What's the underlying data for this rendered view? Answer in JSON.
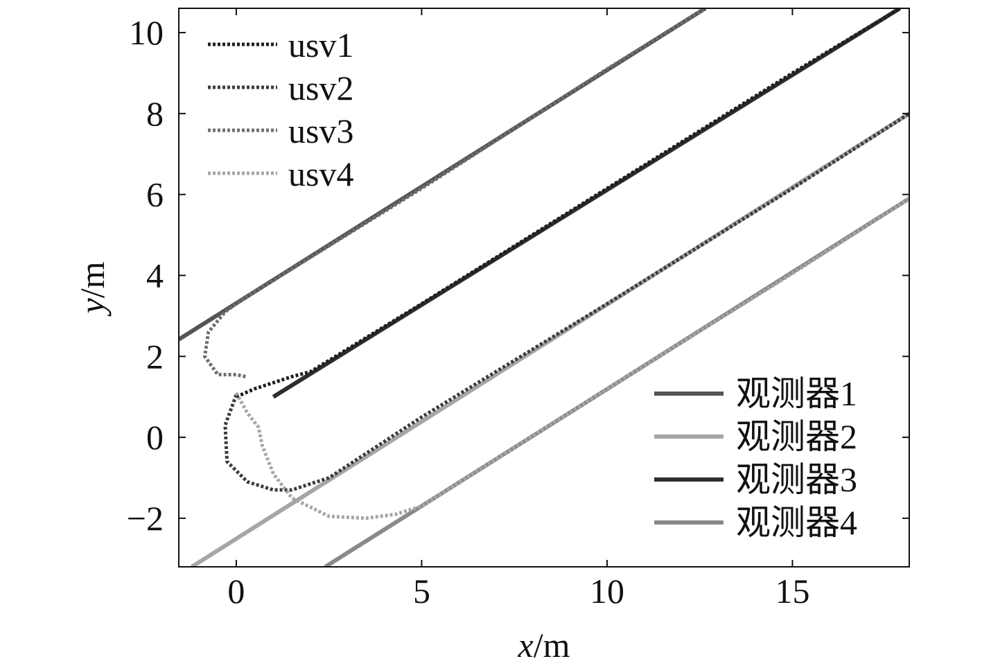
{
  "chart_data": {
    "type": "line",
    "title": "",
    "xlabel_var": "x",
    "xlabel_unit": "/m",
    "ylabel_var": "y",
    "ylabel_unit": "/m",
    "xlim": [
      -1.55,
      18.15
    ],
    "ylim": [
      -3.2,
      10.6
    ],
    "xticks": [
      0,
      5,
      10,
      15
    ],
    "xtick_labels": [
      "0",
      "5",
      "10",
      "15"
    ],
    "yticks": [
      -2,
      0,
      2,
      4,
      6,
      8,
      10
    ],
    "ytick_labels": [
      "−2",
      "0",
      "2",
      "4",
      "6",
      "8",
      "10"
    ],
    "grid": false,
    "legend_dotted_placement": "top-left",
    "legend_solid_placement": "bottom-right",
    "series": [
      {
        "name": "观测器1",
        "style": "solid",
        "color": "#555555",
        "x": [
          -1.55,
          12.65
        ],
        "y": [
          2.42,
          10.6
        ]
      },
      {
        "name": "观测器2",
        "style": "solid",
        "color": "#a6a6a6",
        "x": [
          -1.2,
          18.15
        ],
        "y": [
          -3.2,
          8.0
        ]
      },
      {
        "name": "观测器3",
        "style": "solid",
        "color": "#2e2e2e",
        "x": [
          1.0,
          17.9
        ],
        "y": [
          1.0,
          10.6
        ]
      },
      {
        "name": "观测器4",
        "style": "solid",
        "color": "#8a8a8a",
        "x": [
          2.4,
          18.15
        ],
        "y": [
          -3.2,
          5.9
        ]
      },
      {
        "name": "usv1",
        "style": "dotted",
        "color": "#1e1e1e",
        "x": [
          0.0,
          0.5,
          1.0,
          1.5,
          2.0,
          5.0,
          10.0,
          15.0,
          17.9
        ],
        "y": [
          1.0,
          1.2,
          1.35,
          1.5,
          1.62,
          3.3,
          6.15,
          9.0,
          10.6
        ]
      },
      {
        "name": "usv2",
        "style": "dotted",
        "color": "#3c3c3c",
        "x": [
          0.0,
          -0.3,
          -0.25,
          0.3,
          1.0,
          1.5,
          2.5,
          5.0,
          10.0,
          15.0,
          18.15
        ],
        "y": [
          1.05,
          0.3,
          -0.6,
          -1.1,
          -1.3,
          -1.3,
          -1.0,
          0.5,
          3.3,
          6.15,
          8.0
        ]
      },
      {
        "name": "usv3",
        "style": "dotted",
        "color": "#6e6e6e",
        "x": [
          0.25,
          0.0,
          -0.5,
          -0.85,
          -0.75,
          -0.3,
          0.0,
          0.5,
          1.0,
          5.0,
          10.0,
          12.65
        ],
        "y": [
          1.5,
          1.55,
          1.55,
          2.0,
          2.6,
          3.1,
          3.3,
          3.6,
          3.88,
          6.15,
          9.1,
          10.6
        ]
      },
      {
        "name": "usv4",
        "style": "dotted",
        "color": "#a6a6a6",
        "x": [
          0.0,
          0.3,
          0.6,
          0.7,
          1.0,
          1.5,
          2.5,
          3.5,
          4.3,
          5.0,
          10.0,
          15.0,
          18.15
        ],
        "y": [
          1.1,
          0.6,
          0.25,
          -0.2,
          -0.9,
          -1.5,
          -1.95,
          -2.0,
          -1.9,
          -1.7,
          1.2,
          4.05,
          5.9
        ]
      }
    ]
  }
}
